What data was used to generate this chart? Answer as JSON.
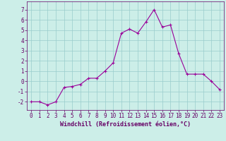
{
  "x": [
    0,
    1,
    2,
    3,
    4,
    5,
    6,
    7,
    8,
    9,
    10,
    11,
    12,
    13,
    14,
    15,
    16,
    17,
    18,
    19,
    20,
    21,
    22,
    23
  ],
  "y": [
    -2,
    -2,
    -2.3,
    -2,
    -0.6,
    -0.5,
    -0.3,
    0.3,
    0.3,
    1.0,
    1.8,
    4.7,
    5.1,
    4.7,
    5.8,
    7.0,
    5.3,
    5.5,
    2.7,
    0.7,
    0.7,
    0.7,
    0.0,
    -0.8
  ],
  "line_color": "#990099",
  "marker": "+",
  "marker_size": 3,
  "marker_linewidth": 0.8,
  "line_width": 0.8,
  "bg_color": "#cceee8",
  "grid_color": "#99cccc",
  "xlabel": "Windchill (Refroidissement éolien,°C)",
  "xlim": [
    -0.5,
    23.5
  ],
  "ylim": [
    -2.8,
    7.8
  ],
  "yticks": [
    -2,
    -1,
    0,
    1,
    2,
    3,
    4,
    5,
    6,
    7
  ],
  "xticks": [
    0,
    1,
    2,
    3,
    4,
    5,
    6,
    7,
    8,
    9,
    10,
    11,
    12,
    13,
    14,
    15,
    16,
    17,
    18,
    19,
    20,
    21,
    22,
    23
  ],
  "tick_color": "#660066",
  "label_fontsize": 5.5,
  "tick_fontsize": 5.5,
  "xlabel_fontsize": 6.0
}
